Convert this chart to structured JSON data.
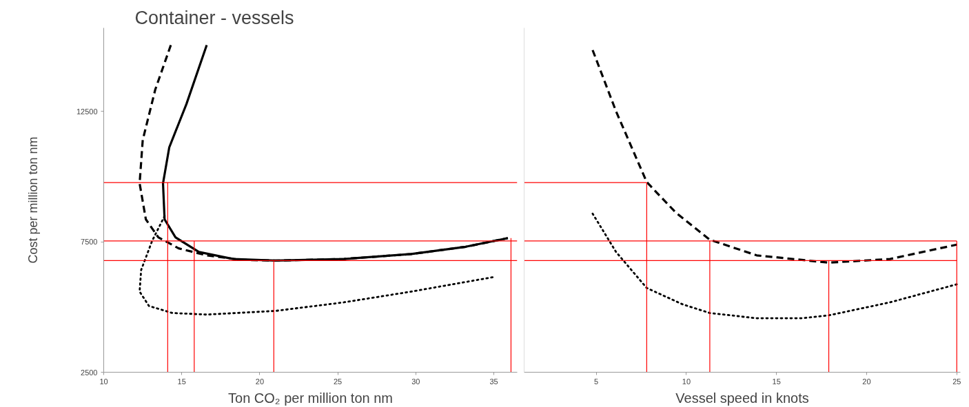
{
  "chart_data": [
    {
      "type": "line",
      "title": "Container - vessels",
      "xlabel": "Ton CO₂ per million ton nm",
      "ylabel": "Cost per million ton nm",
      "xlim": [
        10,
        36.5
      ],
      "ylim": [
        2500,
        15700
      ],
      "xticks": [
        10,
        15,
        20,
        25,
        30,
        35
      ],
      "yticks": [
        2500,
        7500,
        12500
      ],
      "grid": false,
      "series": [
        {
          "color": "#000000",
          "line_style": "dashed",
          "x": [
            14.3,
            13.3,
            12.5,
            12.3,
            12.7,
            13.5,
            14.8,
            16.6,
            18.8,
            21.0,
            25.4,
            29.7,
            33.2,
            35.9
          ],
          "values": [
            15040,
            13330,
            11400,
            9740,
            8360,
            7670,
            7250,
            6980,
            6810,
            6780,
            6840,
            7030,
            7310,
            7640
          ]
        },
        {
          "color": "#000000",
          "line_style": "solid",
          "x": [
            16.6,
            15.3,
            14.2,
            13.8,
            13.9,
            14.6,
            16.1,
            18.3,
            21.0,
            25.4,
            29.7,
            33.2,
            35.9
          ],
          "values": [
            15040,
            12780,
            11120,
            9740,
            8360,
            7670,
            7110,
            6840,
            6780,
            6840,
            7030,
            7310,
            7640
          ]
        },
        {
          "color": "#000000",
          "line_style": "dotted",
          "x": [
            13.9,
            13.1,
            12.4,
            12.3,
            12.9,
            14.4,
            16.6,
            21.0,
            25.4,
            29.7,
            35.0
          ],
          "values": [
            8490,
            7530,
            6420,
            5590,
            5040,
            4770,
            4710,
            4850,
            5180,
            5590,
            6150
          ]
        },
        {
          "color": "#ff0000",
          "line_style": "solid",
          "x": [
            14.1,
            14.1
          ],
          "values": [
            2500,
            9770
          ]
        },
        {
          "color": "#ff0000",
          "line_style": "solid",
          "x": [
            15.8,
            15.8
          ],
          "values": [
            2500,
            7530
          ]
        },
        {
          "color": "#ff0000",
          "line_style": "solid",
          "x": [
            20.9,
            20.9
          ],
          "values": [
            2500,
            6780
          ]
        },
        {
          "color": "#ff0000",
          "line_style": "solid",
          "x": [
            36.1,
            36.1
          ],
          "values": [
            2500,
            7640
          ]
        }
      ],
      "ref_lines": [
        {
          "axis": "y",
          "value": 9770,
          "color": "#ff0000"
        },
        {
          "axis": "y",
          "value": 7530,
          "color": "#ff0000"
        },
        {
          "axis": "y",
          "value": 6780,
          "color": "#ff0000"
        }
      ]
    },
    {
      "type": "line",
      "xlabel": "Vessel speed in knots",
      "xlim": [
        1,
        25.2
      ],
      "ylim": [
        2500,
        15700
      ],
      "xticks": [
        5,
        10,
        15,
        20,
        25
      ],
      "tick_labels": "x",
      "grid": false,
      "series": [
        {
          "color": "#000000",
          "line_style": "dashed",
          "x": [
            4.8,
            6.1,
            7.8,
            9.4,
            11.3,
            13.9,
            17.9,
            21.3,
            25.0
          ],
          "values": [
            14850,
            12500,
            9790,
            8630,
            7580,
            6980,
            6700,
            6840,
            7390
          ]
        },
        {
          "color": "#000000",
          "line_style": "dotted",
          "x": [
            4.8,
            6.1,
            7.8,
            9.8,
            11.3,
            13.9,
            16.4,
            17.9,
            21.3,
            25.0
          ],
          "values": [
            8580,
            7110,
            5730,
            5100,
            4770,
            4570,
            4570,
            4680,
            5180,
            5870
          ]
        },
        {
          "color": "#ff0000",
          "line_style": "solid",
          "x": [
            1,
            7.8
          ],
          "values": [
            9770,
            9770
          ]
        },
        {
          "color": "#ff0000",
          "line_style": "solid",
          "x": [
            1,
            25.0
          ],
          "values": [
            7530,
            7530
          ]
        },
        {
          "color": "#ff0000",
          "line_style": "solid",
          "x": [
            1,
            25.0
          ],
          "values": [
            6780,
            6780
          ]
        },
        {
          "color": "#ff0000",
          "line_style": "solid",
          "x": [
            7.8,
            7.8
          ],
          "values": [
            2500,
            9770
          ]
        },
        {
          "color": "#ff0000",
          "line_style": "solid",
          "x": [
            11.3,
            11.3
          ],
          "values": [
            2500,
            7530
          ]
        },
        {
          "color": "#ff0000",
          "line_style": "solid",
          "x": [
            17.9,
            17.9
          ],
          "values": [
            2500,
            6780
          ]
        },
        {
          "color": "#ff0000",
          "line_style": "solid",
          "x": [
            25.0,
            25.0
          ],
          "values": [
            2500,
            7530
          ]
        }
      ]
    }
  ]
}
